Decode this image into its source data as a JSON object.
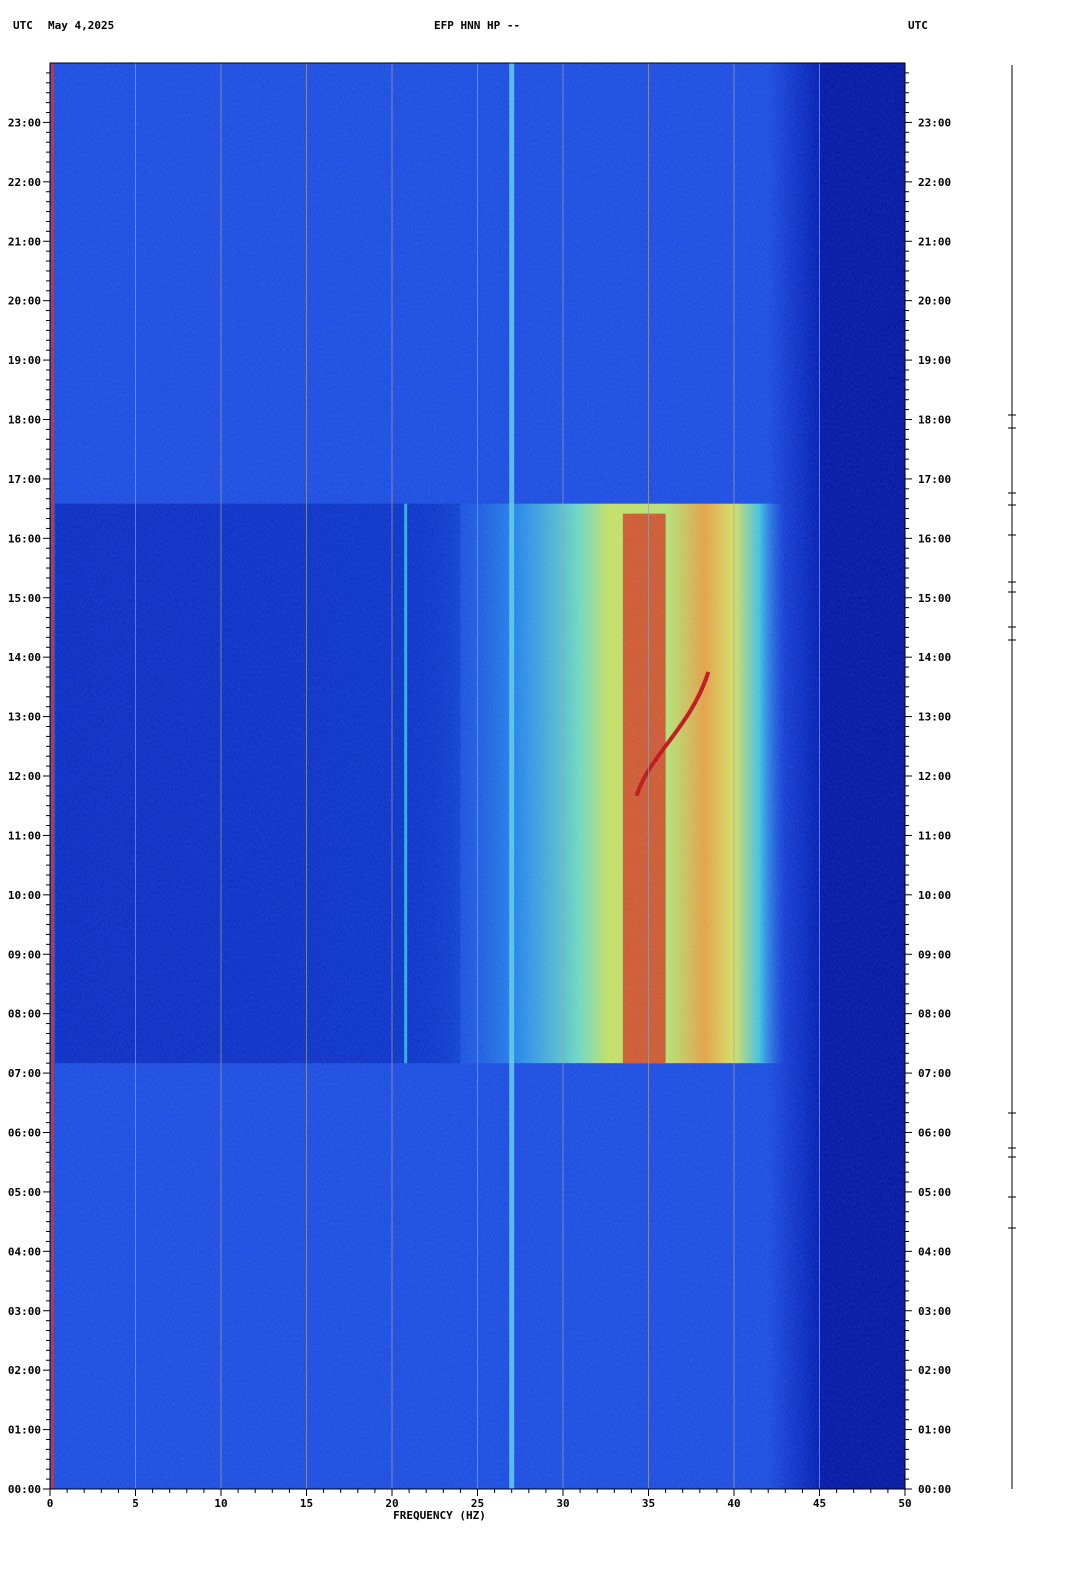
{
  "header": {
    "left_utc": "UTC",
    "date": "May 4,2025",
    "station": "EFP HNN HP --",
    "right_utc": "UTC"
  },
  "colors": {
    "background": "#0010a8",
    "low": "#0a2ec8",
    "mid": "#3fb8e0",
    "high": "#d8e048",
    "peak": "#d81818",
    "grid": "#a0a0a0"
  },
  "chart_data": {
    "type": "heatmap",
    "title": "EFP HNN HP --",
    "xlabel": "FREQUENCY (HZ)",
    "ylabel": "",
    "xlim": [
      0,
      50
    ],
    "ylim": [
      "00:00",
      "24:00"
    ],
    "x_ticks": [
      "0",
      "5",
      "10",
      "15",
      "20",
      "25",
      "30",
      "35",
      "40",
      "45",
      "50"
    ],
    "y_ticks": [
      "00:00",
      "01:00",
      "02:00",
      "03:00",
      "04:00",
      "05:00",
      "06:00",
      "07:00",
      "08:00",
      "09:00",
      "10:00",
      "11:00",
      "12:00",
      "13:00",
      "14:00",
      "15:00",
      "16:00",
      "17:00",
      "18:00",
      "19:00",
      "20:00",
      "21:00",
      "22:00",
      "23:00"
    ],
    "grid": true,
    "features": {
      "constant_line_hz": 27,
      "active_band_hz": [
        24,
        39
      ],
      "active_period": [
        "07:10",
        "16:35"
      ],
      "peak_band_hz": [
        33.5,
        36
      ],
      "signal_cutoff_hz": 45
    }
  }
}
